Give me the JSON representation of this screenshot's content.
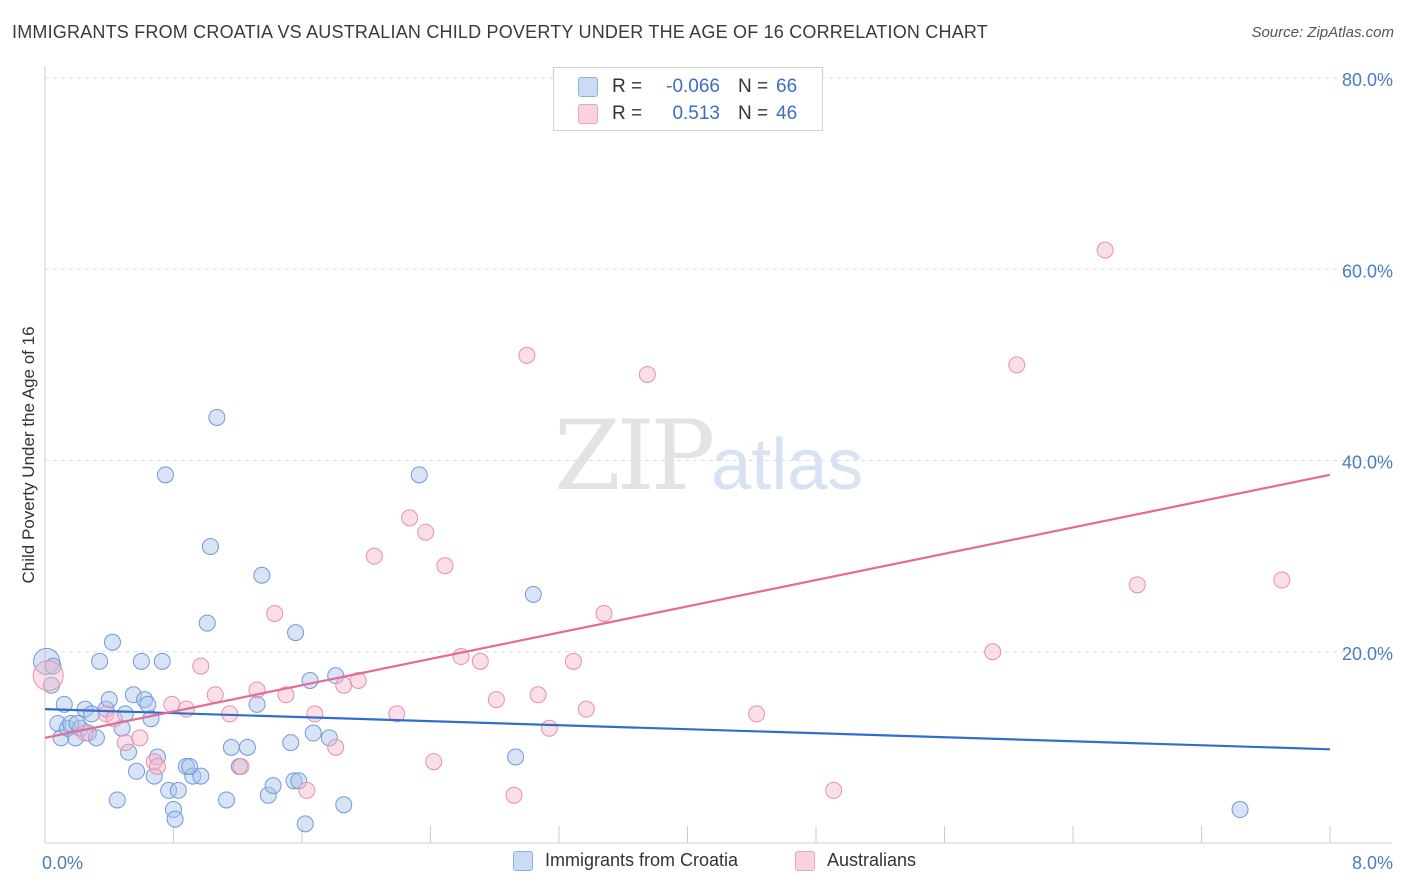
{
  "header": {
    "title": "IMMIGRANTS FROM CROATIA VS AUSTRALIAN CHILD POVERTY UNDER THE AGE OF 16 CORRELATION CHART",
    "source": "Source: ZipAtlas.com"
  },
  "watermark": {
    "zip": "ZIP",
    "atlas": "atlas"
  },
  "legend": {
    "rows": [
      {
        "r_label": "R =",
        "r_value": "-0.066",
        "n_label": "N =",
        "n_value": "66",
        "color": "#a9c4ea"
      },
      {
        "r_label": "R =",
        "r_value": "0.513",
        "n_label": "N =",
        "n_value": "46",
        "color": "#f4b8cb"
      }
    ]
  },
  "bottom_legend": {
    "croatia": "Immigrants from Croatia",
    "australians": "Australians"
  },
  "colors": {
    "blue_fill": "#a9c4ea",
    "blue_stroke": "#6f9bd8",
    "blue_line": "#2f6fcc",
    "pink_fill": "#f4b8cb",
    "pink_stroke": "#e98fae",
    "pink_line": "#e46b95",
    "grid": "#d9dde3",
    "tick_label": "#4a7cc6"
  },
  "chart_data": {
    "type": "scatter",
    "title": "IMMIGRANTS FROM CROATIA VS AUSTRALIAN CHILD POVERTY UNDER THE AGE OF 16 CORRELATION CHART",
    "xlabel": "",
    "ylabel": "Child Poverty Under the Age of 16",
    "xlim": [
      0,
      8
    ],
    "ylim": [
      0,
      80
    ],
    "x_ticks": [
      0,
      8
    ],
    "x_tick_labels": [
      "0.0%",
      "8.0%"
    ],
    "y_ticks": [
      20,
      40,
      60,
      80
    ],
    "y_tick_labels": [
      "20.0%",
      "40.0%",
      "60.0%",
      "80.0%"
    ],
    "grid": "horizontal dashed",
    "legend_position": "top-center",
    "series": [
      {
        "name": "Immigrants from Croatia",
        "color": "#a9c4ea",
        "points": [
          [
            0.01,
            19.0
          ],
          [
            0.04,
            16.5
          ],
          [
            0.05,
            18.5
          ],
          [
            0.08,
            12.5
          ],
          [
            0.1,
            11.0
          ],
          [
            0.12,
            14.5
          ],
          [
            0.14,
            12.0
          ],
          [
            0.16,
            12.5
          ],
          [
            0.19,
            11.0
          ],
          [
            0.22,
            12.0
          ],
          [
            0.25,
            14.0
          ],
          [
            0.27,
            11.5
          ],
          [
            0.29,
            13.5
          ],
          [
            0.32,
            11.0
          ],
          [
            0.34,
            19.0
          ],
          [
            0.38,
            14.0
          ],
          [
            0.4,
            15.0
          ],
          [
            0.42,
            21.0
          ],
          [
            0.45,
            4.5
          ],
          [
            0.48,
            12.0
          ],
          [
            0.5,
            13.5
          ],
          [
            0.52,
            9.5
          ],
          [
            0.55,
            15.5
          ],
          [
            0.57,
            7.5
          ],
          [
            0.6,
            19.0
          ],
          [
            0.62,
            15.0
          ],
          [
            0.64,
            14.5
          ],
          [
            0.66,
            13.0
          ],
          [
            0.68,
            7.0
          ],
          [
            0.7,
            9.0
          ],
          [
            0.73,
            19.0
          ],
          [
            0.75,
            38.5
          ],
          [
            0.77,
            5.5
          ],
          [
            0.8,
            3.5
          ],
          [
            0.81,
            2.5
          ],
          [
            0.83,
            5.5
          ],
          [
            0.88,
            8.0
          ],
          [
            0.92,
            7.0
          ],
          [
            0.97,
            7.0
          ],
          [
            1.01,
            23.0
          ],
          [
            1.03,
            31.0
          ],
          [
            1.07,
            44.5
          ],
          [
            1.13,
            4.5
          ],
          [
            1.16,
            10.0
          ],
          [
            1.21,
            8.0
          ],
          [
            1.26,
            10.0
          ],
          [
            1.32,
            14.5
          ],
          [
            1.35,
            28.0
          ],
          [
            1.39,
            5.0
          ],
          [
            1.42,
            6.0
          ],
          [
            1.53,
            10.5
          ],
          [
            1.55,
            6.5
          ],
          [
            1.56,
            22.0
          ],
          [
            1.58,
            6.5
          ],
          [
            1.62,
            2.0
          ],
          [
            1.65,
            17.0
          ],
          [
            1.67,
            11.5
          ],
          [
            1.77,
            11.0
          ],
          [
            1.81,
            17.5
          ],
          [
            1.86,
            4.0
          ],
          [
            2.33,
            38.5
          ],
          [
            2.93,
            9.0
          ],
          [
            3.04,
            26.0
          ],
          [
            7.44,
            3.5
          ],
          [
            0.2,
            12.5
          ],
          [
            0.9,
            8.0
          ]
        ]
      },
      {
        "name": "Australians",
        "color": "#f4b8cb",
        "points": [
          [
            0.02,
            17.5
          ],
          [
            0.25,
            11.5
          ],
          [
            0.38,
            13.5
          ],
          [
            0.43,
            13.0
          ],
          [
            0.5,
            10.5
          ],
          [
            0.59,
            11.0
          ],
          [
            0.68,
            8.5
          ],
          [
            0.79,
            14.5
          ],
          [
            0.88,
            14.0
          ],
          [
            0.97,
            18.5
          ],
          [
            1.06,
            15.5
          ],
          [
            1.15,
            13.5
          ],
          [
            1.22,
            8.0
          ],
          [
            1.32,
            16.0
          ],
          [
            1.43,
            24.0
          ],
          [
            1.5,
            15.5
          ],
          [
            1.63,
            5.5
          ],
          [
            1.68,
            13.5
          ],
          [
            1.81,
            10.0
          ],
          [
            1.86,
            16.5
          ],
          [
            1.95,
            17.0
          ],
          [
            2.05,
            30.0
          ],
          [
            2.19,
            13.5
          ],
          [
            2.27,
            34.0
          ],
          [
            2.37,
            32.5
          ],
          [
            2.42,
            8.5
          ],
          [
            2.49,
            29.0
          ],
          [
            2.59,
            19.5
          ],
          [
            2.71,
            19.0
          ],
          [
            2.81,
            15.0
          ],
          [
            2.92,
            5.0
          ],
          [
            3.0,
            51.0
          ],
          [
            3.07,
            15.5
          ],
          [
            3.14,
            12.0
          ],
          [
            3.29,
            19.0
          ],
          [
            3.37,
            14.0
          ],
          [
            3.48,
            24.0
          ],
          [
            3.75,
            49.0
          ],
          [
            4.43,
            13.5
          ],
          [
            4.91,
            5.5
          ],
          [
            5.9,
            20.0
          ],
          [
            6.05,
            50.0
          ],
          [
            6.6,
            62.0
          ],
          [
            6.8,
            27.0
          ],
          [
            7.7,
            27.5
          ],
          [
            0.7,
            8.0
          ]
        ]
      }
    ],
    "trendlines": [
      {
        "series": "Immigrants from Croatia",
        "x": [
          0,
          8
        ],
        "y": [
          14.0,
          9.8
        ]
      },
      {
        "series": "Australians",
        "x": [
          0,
          8
        ],
        "y": [
          11.0,
          38.5
        ]
      }
    ]
  }
}
